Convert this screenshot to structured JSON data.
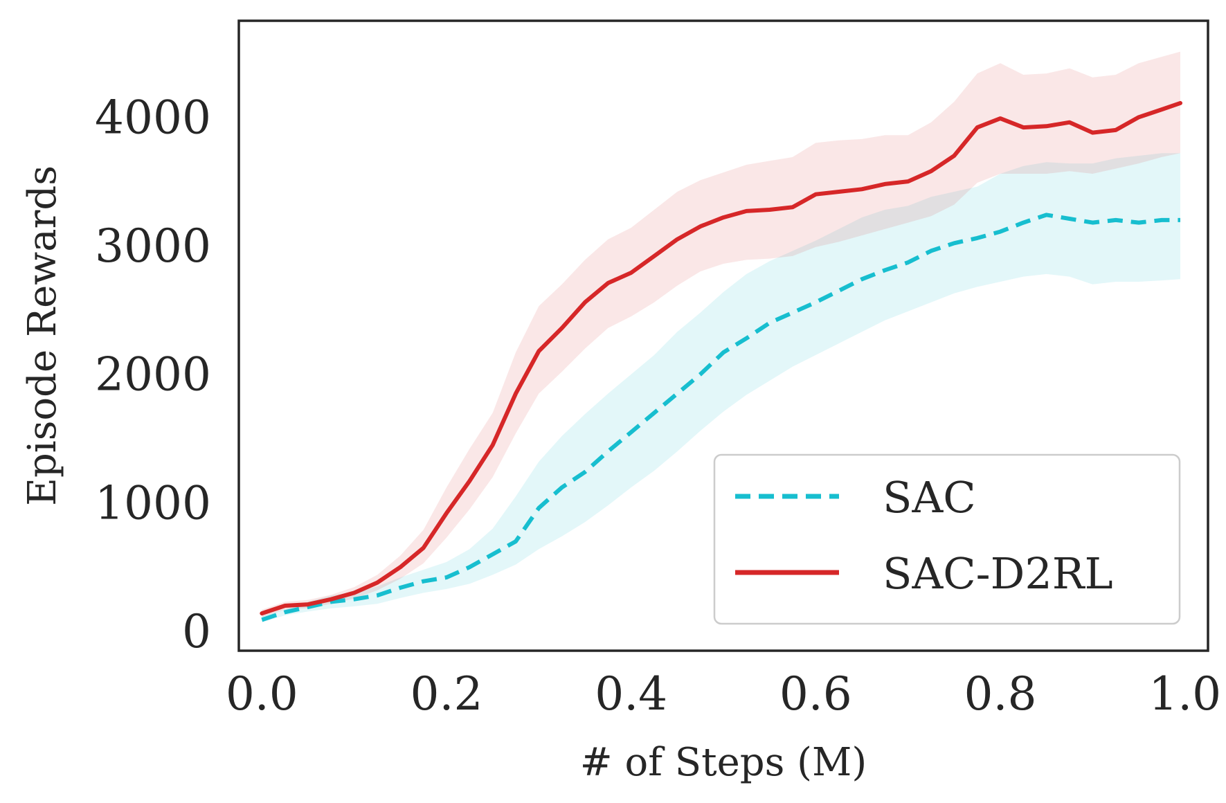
{
  "chart_data": {
    "type": "line",
    "title": "",
    "xlabel": "# of Steps (M)",
    "ylabel": "Episode Rewards",
    "xlim": [
      -0.025,
      1.025
    ],
    "ylim": [
      -150,
      4750
    ],
    "xticks": [
      0.0,
      0.2,
      0.4,
      0.6,
      0.8,
      1.0
    ],
    "xtick_labels": [
      "0.0",
      "0.2",
      "0.4",
      "0.6",
      "0.8",
      "1.0"
    ],
    "yticks": [
      0,
      1000,
      2000,
      3000,
      4000
    ],
    "ytick_labels": [
      "0",
      "1000",
      "2000",
      "3000",
      "4000"
    ],
    "grid": false,
    "legend_position": "lower-right",
    "series": [
      {
        "name": "SAC",
        "color": "#17becf",
        "line_style": "dashed",
        "x": [
          0.0,
          0.025,
          0.05,
          0.075,
          0.1,
          0.125,
          0.15,
          0.175,
          0.2,
          0.225,
          0.25,
          0.275,
          0.3,
          0.325,
          0.35,
          0.375,
          0.4,
          0.425,
          0.45,
          0.475,
          0.5,
          0.525,
          0.55,
          0.575,
          0.6,
          0.625,
          0.65,
          0.675,
          0.7,
          0.725,
          0.75,
          0.775,
          0.8,
          0.825,
          0.85,
          0.875,
          0.9,
          0.925,
          0.95,
          0.975,
          0.995
        ],
        "y": [
          90,
          150,
          190,
          230,
          250,
          280,
          340,
          390,
          420,
          500,
          600,
          700,
          960,
          1120,
          1240,
          1400,
          1550,
          1700,
          1850,
          2000,
          2170,
          2280,
          2400,
          2480,
          2560,
          2650,
          2740,
          2810,
          2870,
          2960,
          3020,
          3060,
          3110,
          3180,
          3240,
          3210,
          3180,
          3200,
          3180,
          3200,
          3200
        ],
        "lower": [
          70,
          125,
          155,
          180,
          195,
          215,
          260,
          300,
          330,
          370,
          440,
          520,
          640,
          740,
          850,
          980,
          1120,
          1250,
          1400,
          1560,
          1710,
          1840,
          1950,
          2060,
          2150,
          2240,
          2330,
          2420,
          2490,
          2560,
          2630,
          2680,
          2720,
          2760,
          2780,
          2760,
          2700,
          2720,
          2720,
          2730,
          2740
        ],
        "upper": [
          120,
          175,
          230,
          280,
          305,
          350,
          420,
          480,
          540,
          640,
          800,
          1050,
          1320,
          1520,
          1690,
          1850,
          2000,
          2150,
          2330,
          2480,
          2640,
          2780,
          2880,
          2960,
          3040,
          3130,
          3220,
          3280,
          3310,
          3380,
          3420,
          3460,
          3560,
          3620,
          3650,
          3640,
          3640,
          3680,
          3700,
          3720,
          3720
        ]
      },
      {
        "name": "SAC-D2RL",
        "color": "#d62728",
        "line_style": "solid",
        "x": [
          0.0,
          0.025,
          0.05,
          0.075,
          0.1,
          0.125,
          0.15,
          0.175,
          0.2,
          0.225,
          0.25,
          0.275,
          0.3,
          0.325,
          0.35,
          0.375,
          0.4,
          0.425,
          0.45,
          0.475,
          0.5,
          0.525,
          0.55,
          0.575,
          0.6,
          0.625,
          0.65,
          0.675,
          0.7,
          0.725,
          0.75,
          0.775,
          0.8,
          0.825,
          0.85,
          0.875,
          0.9,
          0.925,
          0.95,
          0.975,
          0.995
        ],
        "y": [
          140,
          200,
          210,
          250,
          300,
          380,
          500,
          650,
          920,
          1170,
          1450,
          1850,
          2180,
          2360,
          2560,
          2710,
          2790,
          2920,
          3050,
          3150,
          3220,
          3270,
          3280,
          3300,
          3400,
          3420,
          3440,
          3480,
          3500,
          3580,
          3700,
          3920,
          3990,
          3920,
          3930,
          3960,
          3880,
          3900,
          4000,
          4060,
          4110
        ],
        "lower": [
          110,
          170,
          180,
          215,
          255,
          320,
          410,
          530,
          730,
          950,
          1200,
          1540,
          1850,
          2020,
          2200,
          2360,
          2450,
          2560,
          2690,
          2800,
          2860,
          2890,
          2900,
          2920,
          2990,
          3030,
          3080,
          3130,
          3180,
          3230,
          3320,
          3490,
          3560,
          3560,
          3560,
          3580,
          3560,
          3600,
          3640,
          3690,
          3720
        ],
        "upper": [
          170,
          230,
          245,
          285,
          345,
          440,
          590,
          790,
          1120,
          1420,
          1700,
          2170,
          2530,
          2700,
          2890,
          3050,
          3140,
          3280,
          3420,
          3510,
          3570,
          3630,
          3660,
          3690,
          3800,
          3820,
          3830,
          3860,
          3860,
          3960,
          4120,
          4340,
          4420,
          4330,
          4340,
          4380,
          4310,
          4330,
          4420,
          4470,
          4510
        ]
      }
    ]
  }
}
